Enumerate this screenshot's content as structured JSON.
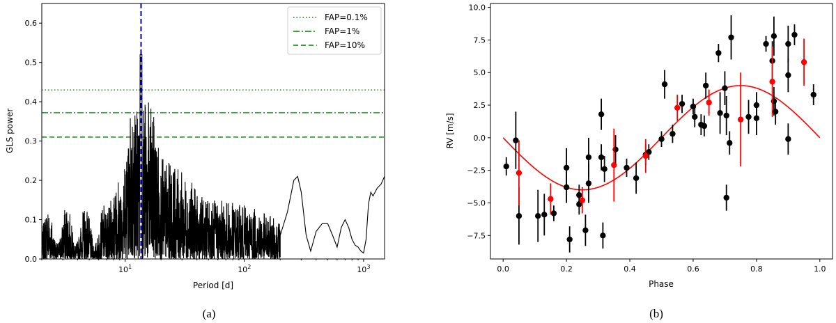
{
  "chart_data": [
    {
      "type": "line",
      "panel_label": "(a)",
      "xlabel": "Period [d]",
      "ylabel": "GLS power",
      "xscale": "log",
      "xlim": [
        2,
        1500
      ],
      "ylim": [
        0,
        0.65
      ],
      "xticks": [
        {
          "value": 10,
          "base": "10",
          "exp": "1"
        },
        {
          "value": 100,
          "base": "10",
          "exp": "2"
        },
        {
          "value": 1000,
          "base": "10",
          "exp": "3"
        }
      ],
      "yticks": [
        0.0,
        0.1,
        0.2,
        0.3,
        0.4,
        0.5,
        0.6
      ],
      "ytick_labels": [
        "0.0",
        "0.1",
        "0.2",
        "0.3",
        "0.4",
        "0.5",
        "0.6"
      ],
      "legend_position": "top-right",
      "fap_lines": [
        {
          "name": "FAP=0.1%",
          "value": 0.43,
          "style": "dotted",
          "color": "#008000"
        },
        {
          "name": "FAP=1%",
          "value": 0.372,
          "style": "dashdot",
          "color": "#008000"
        },
        {
          "name": "FAP=10%",
          "value": 0.31,
          "style": "dashed",
          "color": "#008000"
        }
      ],
      "period_marker": {
        "value": 13.6,
        "color": "#0000cc",
        "style": "dashed"
      },
      "smooth_segment": {
        "x": [
          200,
          230,
          260,
          280,
          300,
          330,
          360,
          400,
          450,
          500,
          550,
          600,
          650,
          700,
          750,
          800,
          850,
          900,
          950,
          1000,
          1050,
          1100,
          1150,
          1200,
          1300,
          1400,
          1500
        ],
        "y": [
          0.06,
          0.12,
          0.2,
          0.21,
          0.17,
          0.06,
          0.02,
          0.07,
          0.09,
          0.09,
          0.06,
          0.03,
          0.08,
          0.1,
          0.08,
          0.05,
          0.035,
          0.03,
          0.02,
          0.015,
          0.05,
          0.14,
          0.17,
          0.16,
          0.18,
          0.19,
          0.21
        ]
      },
      "series_color": "#000000"
    },
    {
      "type": "scatter",
      "panel_label": "(b)",
      "xlabel": "Phase",
      "ylabel": "RV [m/s]",
      "xlim": [
        -0.04,
        1.04
      ],
      "ylim": [
        -9.3,
        10.3
      ],
      "xticks": [
        0.0,
        0.2,
        0.4,
        0.6,
        0.8,
        1.0
      ],
      "xtick_labels": [
        "0.0",
        "0.2",
        "0.4",
        "0.6",
        "0.8",
        "1.0"
      ],
      "yticks": [
        -7.5,
        -5.0,
        -2.5,
        0.0,
        2.5,
        5.0,
        7.5,
        10.0
      ],
      "ytick_labels": [
        "−7.5",
        "−5.0",
        "−2.5",
        "0.0",
        "2.5",
        "5.0",
        "7.5",
        "10.0"
      ],
      "model": {
        "type": "sine",
        "amplitude": 4.0,
        "phase_min": 0.25,
        "color": "#ff0000"
      },
      "series": [
        {
          "color": "#000000",
          "points": [
            {
              "x": 0.01,
              "y": -2.2,
              "err": 0.7
            },
            {
              "x": 0.04,
              "y": -0.2,
              "err": 2.2
            },
            {
              "x": 0.05,
              "y": -6.0,
              "err": 2.2
            },
            {
              "x": 0.11,
              "y": -6.0,
              "err": 2.0
            },
            {
              "x": 0.13,
              "y": -5.9,
              "err": 1.6
            },
            {
              "x": 0.16,
              "y": -5.8,
              "err": 0.6
            },
            {
              "x": 0.2,
              "y": -2.3,
              "err": 1.5
            },
            {
              "x": 0.2,
              "y": -3.8,
              "err": 1.2
            },
            {
              "x": 0.21,
              "y": -7.8,
              "err": 1.0
            },
            {
              "x": 0.24,
              "y": -4.4,
              "err": 0.8
            },
            {
              "x": 0.24,
              "y": -5.1,
              "err": 0.8
            },
            {
              "x": 0.26,
              "y": -7.1,
              "err": 1.2
            },
            {
              "x": 0.27,
              "y": -1.5,
              "err": 1.5
            },
            {
              "x": 0.27,
              "y": -3.5,
              "err": 1.5
            },
            {
              "x": 0.31,
              "y": 1.8,
              "err": 1.2
            },
            {
              "x": 0.31,
              "y": -1.5,
              "err": 1.0
            },
            {
              "x": 0.32,
              "y": -2.4,
              "err": 1.0
            },
            {
              "x": 0.315,
              "y": -7.5,
              "err": 1.0
            },
            {
              "x": 0.355,
              "y": -0.9,
              "err": 1.1
            },
            {
              "x": 0.39,
              "y": -2.3,
              "err": 0.7
            },
            {
              "x": 0.42,
              "y": -3.1,
              "err": 1.2
            },
            {
              "x": 0.45,
              "y": -1.3,
              "err": 0.8
            },
            {
              "x": 0.46,
              "y": -1.1,
              "err": 0.6
            },
            {
              "x": 0.5,
              "y": -0.1,
              "err": 0.6
            },
            {
              "x": 0.51,
              "y": 4.1,
              "err": 1.1
            },
            {
              "x": 0.535,
              "y": 0.3,
              "err": 0.7
            },
            {
              "x": 0.565,
              "y": 2.6,
              "err": 0.7
            },
            {
              "x": 0.6,
              "y": 2.4,
              "err": 0.6
            },
            {
              "x": 0.605,
              "y": 1.6,
              "err": 0.8
            },
            {
              "x": 0.625,
              "y": 1.0,
              "err": 0.8
            },
            {
              "x": 0.635,
              "y": 0.9,
              "err": 0.8
            },
            {
              "x": 0.64,
              "y": 4.0,
              "err": 1.0
            },
            {
              "x": 0.68,
              "y": 6.5,
              "err": 0.7
            },
            {
              "x": 0.685,
              "y": 1.9,
              "err": 1.6
            },
            {
              "x": 0.7,
              "y": 3.8,
              "err": 1.3
            },
            {
              "x": 0.705,
              "y": 1.7,
              "err": 1.5
            },
            {
              "x": 0.705,
              "y": -4.6,
              "err": 1.0
            },
            {
              "x": 0.715,
              "y": -0.4,
              "err": 0.9
            },
            {
              "x": 0.72,
              "y": 7.7,
              "err": 1.7
            },
            {
              "x": 0.775,
              "y": 1.6,
              "err": 1.3
            },
            {
              "x": 0.8,
              "y": 2.5,
              "err": 1.0
            },
            {
              "x": 0.8,
              "y": 1.5,
              "err": 1.3
            },
            {
              "x": 0.83,
              "y": 7.2,
              "err": 0.6
            },
            {
              "x": 0.85,
              "y": 5.9,
              "err": 1.5
            },
            {
              "x": 0.855,
              "y": 7.8,
              "err": 1.5
            },
            {
              "x": 0.855,
              "y": 2.8,
              "err": 1.1
            },
            {
              "x": 0.86,
              "y": 2.0,
              "err": 1.0
            },
            {
              "x": 0.9,
              "y": 7.2,
              "err": 1.4
            },
            {
              "x": 0.9,
              "y": 4.8,
              "err": 1.3
            },
            {
              "x": 0.9,
              "y": -0.1,
              "err": 1.2
            },
            {
              "x": 0.92,
              "y": 7.9,
              "err": 0.8
            },
            {
              "x": 0.98,
              "y": 3.3,
              "err": 0.8
            }
          ]
        },
        {
          "color": "#ff0000",
          "points": [
            {
              "x": 0.05,
              "y": -2.7,
              "err": 2.5
            },
            {
              "x": 0.15,
              "y": -4.7,
              "err": 1.2
            },
            {
              "x": 0.25,
              "y": -4.8,
              "err": 1.0
            },
            {
              "x": 0.35,
              "y": -2.1,
              "err": 2.8
            },
            {
              "x": 0.45,
              "y": -1.4,
              "err": 1.3
            },
            {
              "x": 0.55,
              "y": 2.3,
              "err": 1.0
            },
            {
              "x": 0.65,
              "y": 2.7,
              "err": 1.0
            },
            {
              "x": 0.75,
              "y": 1.4,
              "err": 3.6
            },
            {
              "x": 0.85,
              "y": 4.3,
              "err": 2.7
            },
            {
              "x": 0.95,
              "y": 5.8,
              "err": 1.8
            }
          ]
        }
      ]
    }
  ]
}
